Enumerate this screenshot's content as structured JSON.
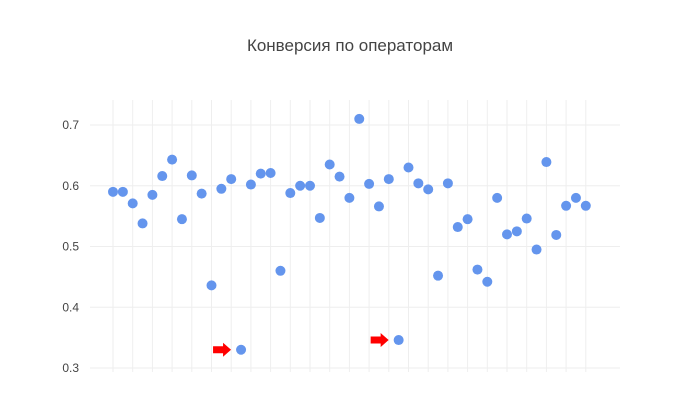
{
  "chart_data": {
    "type": "scatter",
    "title": "Конверсия по операторам",
    "xlabel": "",
    "ylabel": "",
    "ylim": [
      0.3,
      0.74
    ],
    "yticks": [
      "0.7",
      "0.6",
      "0.5",
      "0.4",
      "0.3"
    ],
    "ytick_values": [
      0.7,
      0.6,
      0.5,
      0.4,
      0.3
    ],
    "grid": true,
    "marker_color": "#6495ED",
    "arrow_color": "#FF0000",
    "series": [
      {
        "values": [
          0.59,
          0.59,
          0.571,
          0.538,
          0.585,
          0.616,
          0.643,
          0.545,
          0.617,
          0.587,
          0.436,
          0.595,
          0.611,
          0.33,
          0.602,
          0.62,
          0.621,
          0.46,
          0.588,
          0.6,
          0.6,
          0.547,
          0.635,
          0.615,
          0.58,
          0.71,
          0.603,
          0.566,
          0.611,
          0.346,
          0.63,
          0.604,
          0.594,
          0.452,
          0.604,
          0.532,
          0.545,
          0.462,
          0.442,
          0.58,
          0.52,
          0.525,
          0.546,
          0.495,
          0.639,
          0.519,
          0.567,
          0.58,
          0.567
        ]
      }
    ],
    "highlighted_points": [
      13,
      29
    ]
  }
}
